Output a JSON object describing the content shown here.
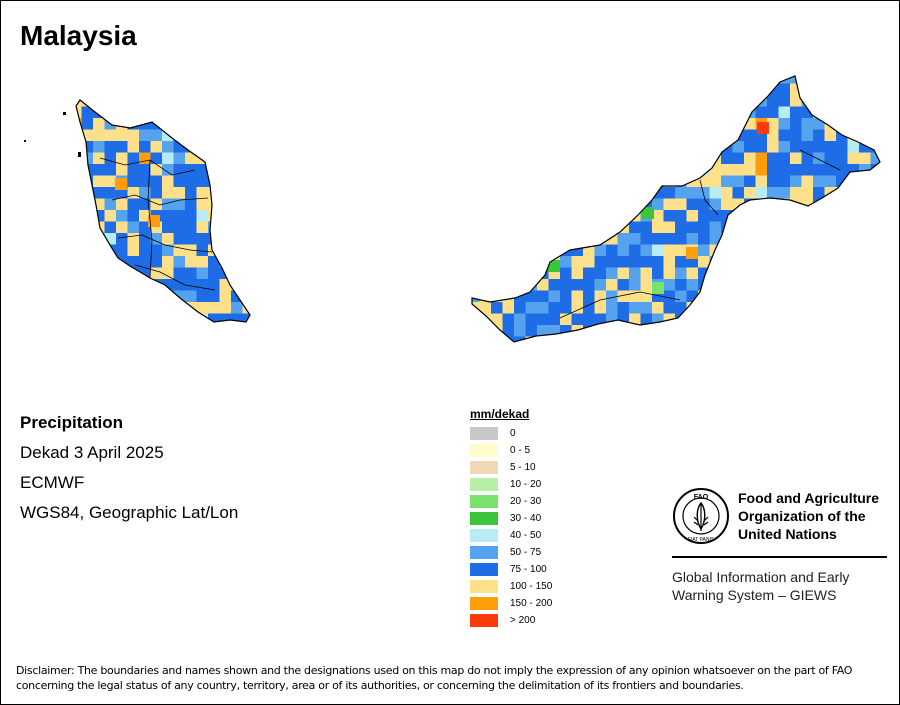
{
  "title": "Malaysia",
  "info": {
    "heading": "Precipitation",
    "period": "Dekad 3 April 2025",
    "source": "ECMWF",
    "projection": "WGS84, Geographic Lat/Lon"
  },
  "legend": {
    "title": "mm/dekad",
    "items": [
      {
        "label": "0",
        "color": "#c8c8c8"
      },
      {
        "label": "0 - 5",
        "color": "#fffccc"
      },
      {
        "label": "5 - 10",
        "color": "#f0d9b5"
      },
      {
        "label": "10 - 20",
        "color": "#b6f0a6"
      },
      {
        "label": "20 - 30",
        "color": "#7ae26c"
      },
      {
        "label": "30 - 40",
        "color": "#3cc43c"
      },
      {
        "label": "40 - 50",
        "color": "#b8ecf5"
      },
      {
        "label": "50 - 75",
        "color": "#55a3ef"
      },
      {
        "label": "75 - 100",
        "color": "#1e6ce6"
      },
      {
        "label": "100 - 150",
        "color": "#fde18a"
      },
      {
        "label": "150 - 200",
        "color": "#ff9e0a"
      },
      {
        "label": "> 200",
        "color": "#ff3a0a"
      }
    ]
  },
  "organization": {
    "name": "Food and Agriculture Organization of the United Nations",
    "logo_text": "FAO",
    "logo_motto": "FIAT PANIS",
    "program": "Global Information and Early Warning System – GIEWS"
  },
  "disclaimer": "Disclaimer: The boundaries and names shown and the designations used on this map do not imply the expression of any opinion whatsoever on the part of FAO concerning the legal status of any country, territory, area or of its authorities, or concerning the delimitation of its frontiers and boundaries."
}
